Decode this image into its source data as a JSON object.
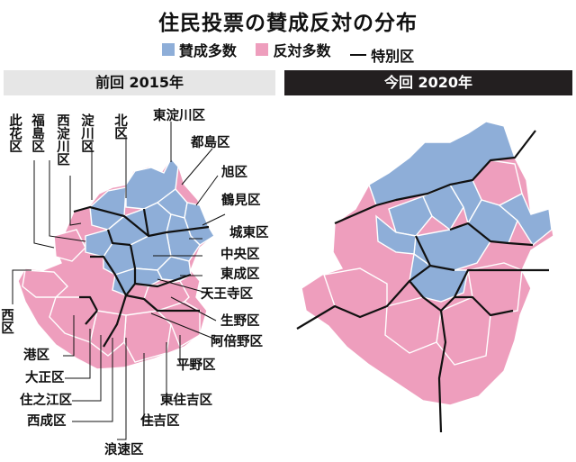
{
  "title": "住民投票の賛成反対の分布",
  "legend": {
    "approve": "賛成多数",
    "oppose": "反対多数",
    "special_ward": "特別区"
  },
  "colors": {
    "approve": "#8eaed8",
    "oppose": "#ee9ebd",
    "boundary": "#111111"
  },
  "panels": {
    "left": {
      "heading": "前回 2015年"
    },
    "right": {
      "heading": "今回 2020年"
    }
  },
  "wards": {
    "konohana": "此花区",
    "fukushima": "福島区",
    "nishiyodogawa": "西淀川区",
    "yodogawa": "淀川区",
    "kita": "北区",
    "higashiyodogawa": "東淀川区",
    "miyakojima": "都島区",
    "asahi": "旭区",
    "tsurumi": "鶴見区",
    "joto": "城東区",
    "chuo": "中央区",
    "higashinari": "東成区",
    "tennoji": "天王寺区",
    "ikuno": "生野区",
    "abeno": "阿倍野区",
    "hirano": "平野区",
    "higashisumiyoshi": "東住吉区",
    "sumiyoshi": "住吉区",
    "naniwa": "浪速区",
    "nishinari": "西成区",
    "suminoe": "住之江区",
    "taisho": "大正区",
    "minato": "港区",
    "nishi": "西区"
  }
}
